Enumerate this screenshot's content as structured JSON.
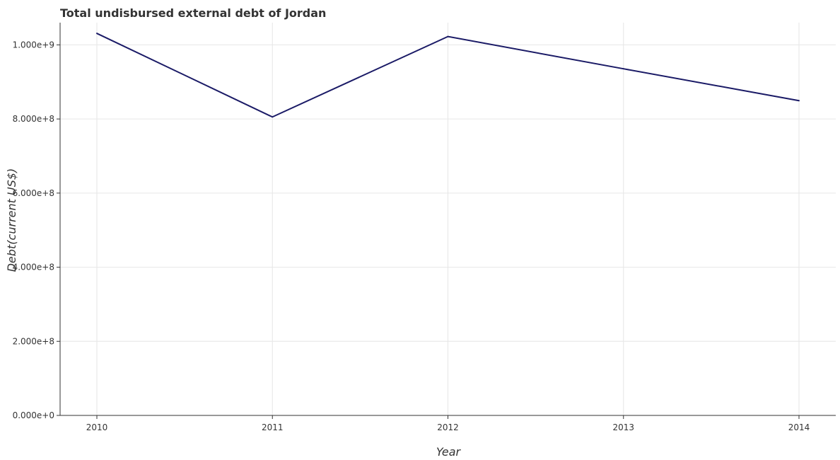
{
  "chart_data": {
    "type": "line",
    "title": "Total undisbursed external debt of Jordan",
    "xlabel": "Year",
    "ylabel": "Debt(current US$)",
    "categories": [
      "2010",
      "2011",
      "2012",
      "2013",
      "2014"
    ],
    "series": [
      {
        "values": [
          1031000000,
          805500000,
          1022500000,
          935500000,
          849500000
        ]
      }
    ],
    "yticks": [
      0,
      200000000,
      400000000,
      600000000,
      800000000,
      1000000000
    ],
    "ytick_labels": [
      "0.000e+0",
      "2.000e+8",
      "4.000e+8",
      "6.000e+8",
      "8.000e+8",
      "1.000e+9"
    ],
    "ylim": [
      0,
      1060000000
    ],
    "grid": true,
    "line_color": "#1a1a66"
  }
}
